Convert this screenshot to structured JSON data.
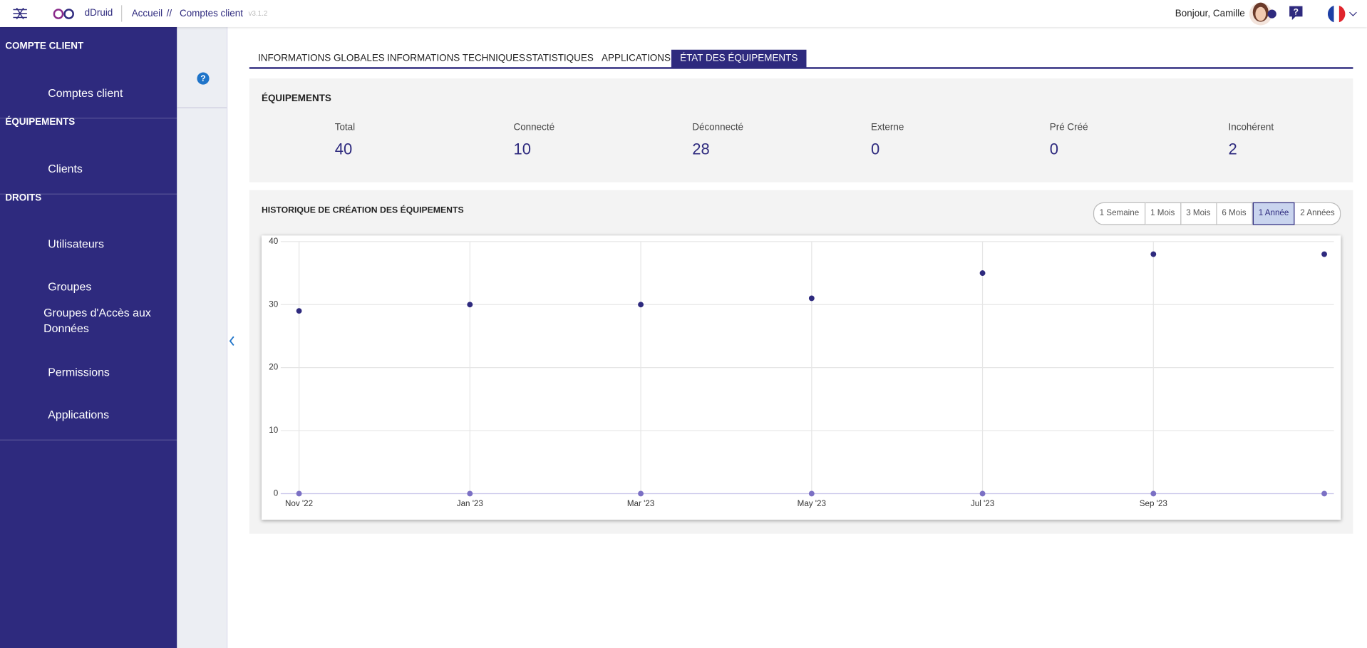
{
  "header": {
    "brand": "dDruid",
    "breadcrumb": [
      "Accueil",
      "//",
      "Comptes client"
    ],
    "version": "v3.1.2",
    "greeting": "Bonjour, Camille"
  },
  "sidebar": {
    "sections": [
      {
        "title": "COMPTE CLIENT",
        "items": [
          "Comptes client"
        ]
      },
      {
        "title": "ÉQUIPEMENTS",
        "items": [
          "Clients"
        ]
      },
      {
        "title": "DROITS",
        "items": [
          "Utilisateurs",
          "Groupes",
          "Groupes d'Accès aux Données",
          "Permissions",
          "Applications"
        ]
      }
    ]
  },
  "tabs": {
    "items": [
      "INFORMATIONS GLOBALES",
      "INFORMATIONS TECHNIQUES",
      "STATISTIQUES",
      "APPLICATIONS",
      "ÉTAT DES ÉQUIPEMENTS"
    ],
    "active": 4
  },
  "equipements": {
    "title": "ÉQUIPEMENTS",
    "stats": [
      {
        "label": "Total",
        "value": 40
      },
      {
        "label": "Connecté",
        "value": 10
      },
      {
        "label": "Déconnecté",
        "value": 28
      },
      {
        "label": "Externe",
        "value": 0
      },
      {
        "label": "Pré Créé",
        "value": 0
      },
      {
        "label": "Incohérent",
        "value": 2
      }
    ]
  },
  "history": {
    "title": "HISTORIQUE DE CRÉATION DES ÉQUIPEMENTS",
    "ranges": [
      "1 Semaine",
      "1 Mois",
      "3 Mois",
      "6 Mois",
      "1 Année",
      "2 Années"
    ],
    "active_range": 4
  },
  "chart_data": {
    "type": "scatter",
    "categories": [
      "Nov '22",
      "Jan '23",
      "Mar '23",
      "May '23",
      "Jul '23",
      "Sep '23",
      null
    ],
    "series": [
      {
        "color": "#2e2a7e",
        "values": [
          29,
          30,
          30,
          31,
          35,
          38,
          38
        ]
      },
      {
        "color": "#7b70c4",
        "values": [
          0,
          0,
          0,
          0,
          0,
          0,
          0
        ]
      }
    ],
    "ylim": [
      0,
      40
    ],
    "yticks": [
      0,
      10,
      20,
      30,
      40
    ],
    "grid": true
  }
}
